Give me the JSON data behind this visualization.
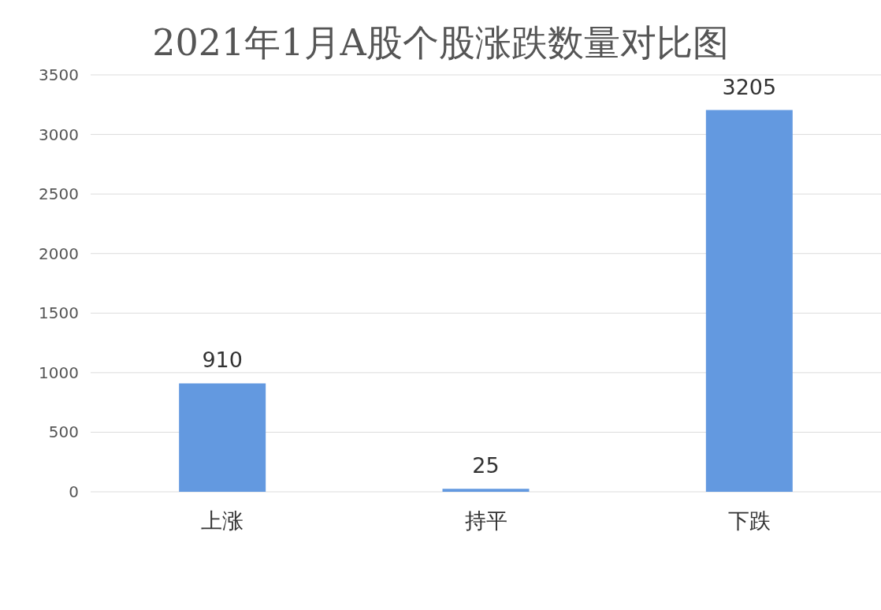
{
  "chart_data": {
    "type": "bar",
    "title": "2021年1月A股个股涨跌数量对比图",
    "categories": [
      "上涨",
      "持平",
      "下跌"
    ],
    "values": [
      910,
      25,
      3205
    ],
    "color": "#6399e0",
    "ylim": [
      0,
      3500
    ],
    "yticks": [
      0,
      500,
      1000,
      1500,
      2000,
      2500,
      3000,
      3500
    ],
    "grid": "y",
    "data_labels": true
  }
}
